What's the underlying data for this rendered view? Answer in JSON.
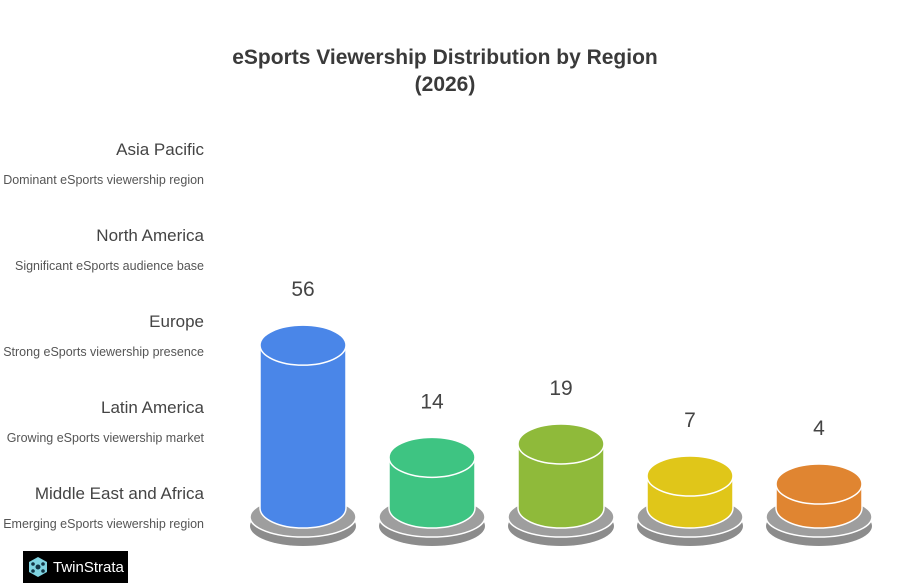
{
  "chart_data": {
    "type": "bar",
    "title_lines": [
      "eSports Viewership Distribution by Region",
      "(2026)"
    ],
    "categories": [
      "Asia Pacific",
      "North America",
      "Europe",
      "Latin America",
      "Middle East and Africa"
    ],
    "descriptions": [
      "Dominant eSports viewership region",
      "Significant eSports audience base",
      "Strong eSports viewership presence",
      "Growing eSports viewership market",
      "Emerging eSports viewership region"
    ],
    "values": [
      56,
      14,
      19,
      7,
      4
    ],
    "colors": [
      "#4a86e8",
      "#3ec482",
      "#8fba3a",
      "#e0c619",
      "#e08531"
    ],
    "style": "3D cylinders on grey pedestals",
    "grid": false,
    "legend_placement": "left"
  },
  "logo": {
    "text": "TwinStrata"
  }
}
